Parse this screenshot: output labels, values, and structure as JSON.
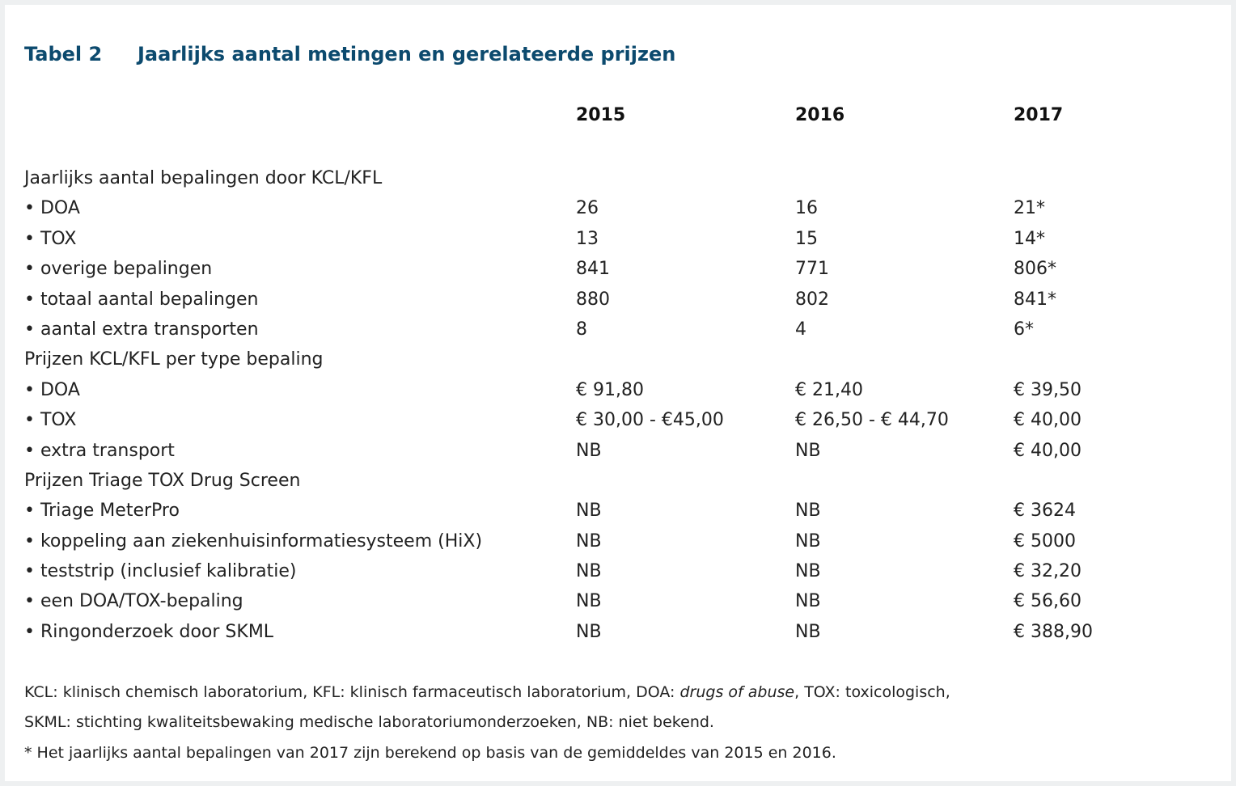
{
  "title": {
    "label": "Tabel 2",
    "text": "Jaarlijks aantal metingen en gerelateerde prijzen"
  },
  "columns": [
    "2015",
    "2016",
    "2017"
  ],
  "rows": [
    {
      "label": "Jaarlijks aantal bepalingen door KCL/KFL",
      "v": [
        "",
        "",
        ""
      ]
    },
    {
      "label": "• DOA",
      "v": [
        "26",
        "16",
        "21*"
      ]
    },
    {
      "label": "• TOX",
      "v": [
        "13",
        "15",
        "14*"
      ]
    },
    {
      "label": "• overige bepalingen",
      "v": [
        "841",
        "771",
        "806*"
      ]
    },
    {
      "label": "• totaal aantal bepalingen",
      "v": [
        "880",
        "802",
        "841*"
      ]
    },
    {
      "label": "• aantal extra transporten",
      "v": [
        "8",
        "4",
        "6*"
      ]
    },
    {
      "label": "Prijzen KCL/KFL per type bepaling",
      "v": [
        "",
        "",
        ""
      ]
    },
    {
      "label": "• DOA",
      "v": [
        "€ 91,80",
        "€ 21,40",
        "€ 39,50"
      ]
    },
    {
      "label": "• TOX",
      "v": [
        "€ 30,00 - €45,00",
        "€ 26,50 - € 44,70",
        "€ 40,00"
      ]
    },
    {
      "label": "• extra transport",
      "v": [
        "NB",
        "NB",
        "€ 40,00"
      ]
    },
    {
      "label": "Prijzen Triage TOX Drug Screen",
      "v": [
        "",
        "",
        ""
      ]
    },
    {
      "label": "• Triage MeterPro",
      "v": [
        "NB",
        "NB",
        "€ 3624"
      ]
    },
    {
      "label": "• koppeling aan ziekenhuisinformatiesysteem (HiX)",
      "v": [
        "NB",
        "NB",
        "€ 5000"
      ]
    },
    {
      "label": "• teststrip (inclusief kalibratie)",
      "v": [
        "NB",
        "NB",
        "€ 32,20"
      ]
    },
    {
      "label": "• een DOA/TOX-bepaling",
      "v": [
        "NB",
        "NB",
        "€ 56,60"
      ]
    },
    {
      "label": "• Ringonderzoek door SKML",
      "v": [
        "NB",
        "NB",
        "€ 388,90"
      ]
    }
  ],
  "notes": {
    "line1_a": "KCL: klinisch chemisch laboratorium, KFL: klinisch farmaceutisch laboratorium, DOA: ",
    "line1_italic": "drugs of abuse",
    "line1_b": ", TOX: toxicologisch,",
    "line2": "SKML: stichting kwaliteitsbewaking medische laboratoriumonderzoeken, NB: niet bekend.",
    "line3": "* Het jaarlijks aantal bepalingen van 2017 zijn berekend op basis van de gemiddeldes van 2015 en 2016."
  }
}
